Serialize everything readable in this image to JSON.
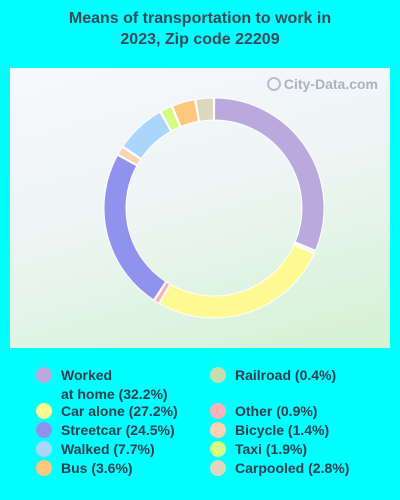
{
  "title_line1": "Means of transportation to work in",
  "title_line2": "2023, Zip code 22209",
  "watermark": "City-Data.com",
  "chart_data": {
    "type": "pie",
    "title": "Means of transportation to work in 2023, Zip code 22209",
    "slices": [
      {
        "label": "Worked\nat home (32.2%)",
        "value": 32.2,
        "color": "#b9a9dc"
      },
      {
        "label": "Railroad (0.4%)",
        "value": 0.4,
        "color": "#c5deb0"
      },
      {
        "label": "Car alone (27.2%)",
        "value": 27.2,
        "color": "#fef990"
      },
      {
        "label": "Other (0.9%)",
        "value": 0.9,
        "color": "#f8b3b8"
      },
      {
        "label": "Streetcar (24.5%)",
        "value": 24.5,
        "color": "#9191ee"
      },
      {
        "label": "Bicycle (1.4%)",
        "value": 1.4,
        "color": "#fcd2b2"
      },
      {
        "label": "Walked (7.7%)",
        "value": 7.7,
        "color": "#acd5fb"
      },
      {
        "label": "Taxi (1.9%)",
        "value": 1.9,
        "color": "#d5fb86"
      },
      {
        "label": "Bus (3.6%)",
        "value": 3.6,
        "color": "#fdc87d"
      },
      {
        "label": "Carpooled (2.8%)",
        "value": 2.8,
        "color": "#dcd8bd"
      }
    ],
    "legend_placement": "bottom",
    "legend_columns": [
      [
        "Worked\nat home (32.2%)",
        "Car alone (27.2%)",
        "Streetcar (24.5%)",
        "Walked (7.7%)",
        "Bus (3.6%)"
      ],
      [
        "Railroad (0.4%)",
        "Other (0.9%)",
        "Bicycle (1.4%)",
        "Taxi (1.9%)",
        "Carpooled (2.8%)"
      ]
    ]
  }
}
